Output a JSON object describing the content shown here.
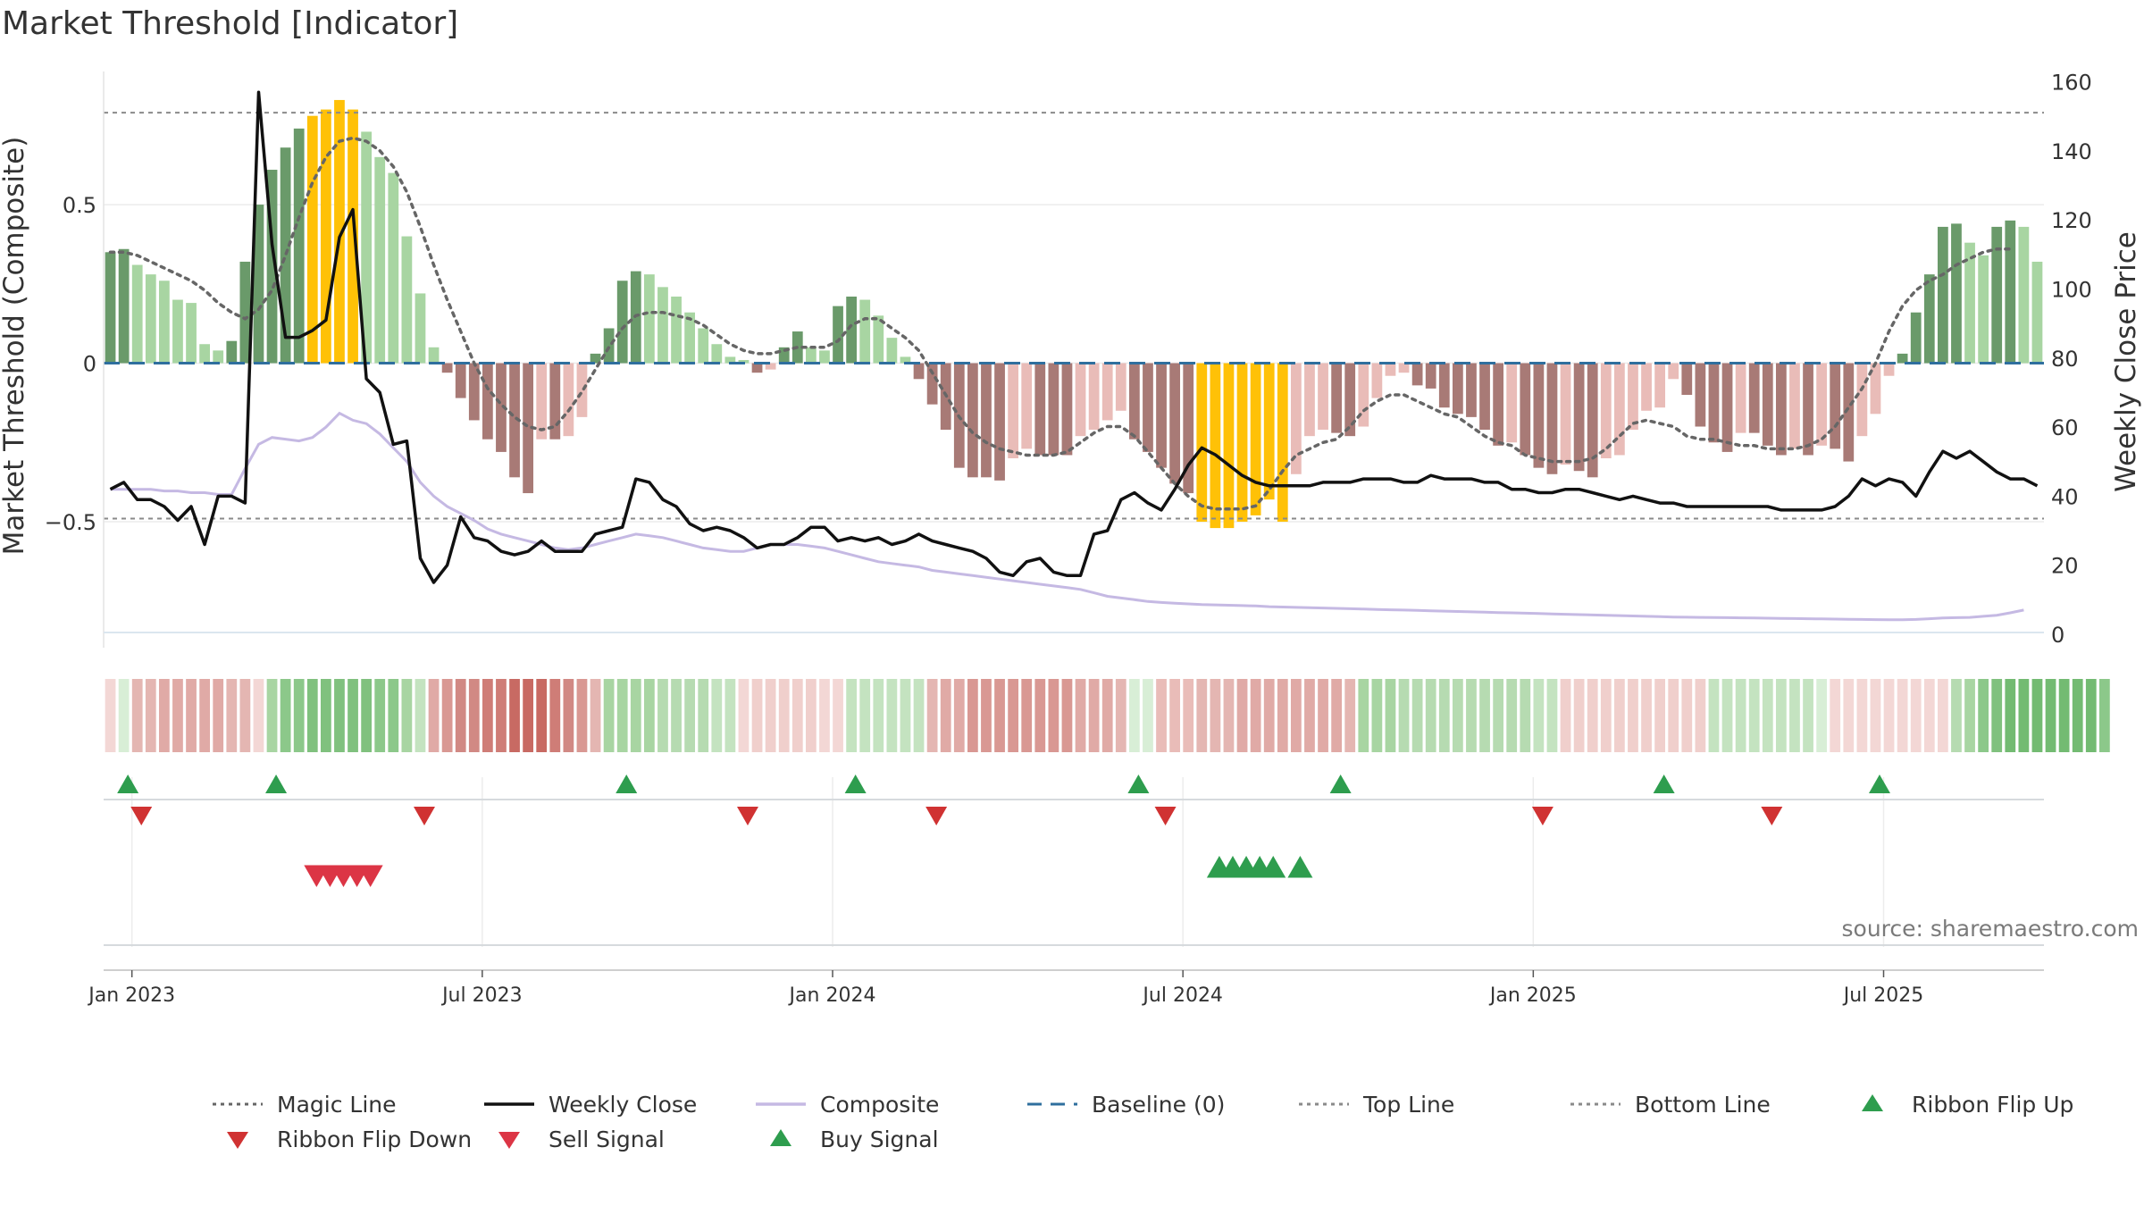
{
  "chart_data": {
    "type": "bar",
    "title": "Market Threshold [Indicator]",
    "ylabel_left": "Market Threshold (Composite)",
    "ylabel_right": "Weekly Close Price",
    "y_left_ticks": [
      {
        "v": 0.5,
        "label": "0.5"
      },
      {
        "v": 0,
        "label": "0"
      },
      {
        "v": -0.5,
        "label": "−0.5"
      }
    ],
    "y_left_range": [
      -0.855,
      0.92
    ],
    "y_right_ticks": [
      160,
      140,
      120,
      100,
      80,
      60,
      40,
      20,
      0
    ],
    "y_right_range": [
      0,
      163
    ],
    "x_ticks": [
      "Jan 2023",
      "Jul 2023",
      "Jan 2024",
      "Jul 2024",
      "Jan 2025",
      "Jul 2025"
    ],
    "x_tick_weeks": [
      2,
      28,
      54,
      80,
      106,
      132
    ],
    "top_line": 0.79,
    "bottom_line": -0.49,
    "baseline": 0,
    "week_count": 144,
    "bars": [
      0.35,
      0.36,
      0.31,
      0.28,
      0.26,
      0.2,
      0.19,
      0.06,
      0.04,
      0.07,
      0.32,
      0.5,
      0.61,
      0.68,
      0.74,
      0.78,
      0.8,
      0.83,
      0.8,
      0.73,
      0.65,
      0.6,
      0.4,
      0.22,
      0.05,
      -0.03,
      -0.11,
      -0.18,
      -0.24,
      -0.28,
      -0.36,
      -0.41,
      -0.24,
      -0.24,
      -0.23,
      -0.17,
      0.03,
      0.11,
      0.26,
      0.29,
      0.28,
      0.24,
      0.21,
      0.16,
      0.11,
      0.06,
      0.02,
      0.01,
      -0.03,
      -0.02,
      0.05,
      0.1,
      0.05,
      0.04,
      0.18,
      0.21,
      0.2,
      0.15,
      0.08,
      0.02,
      -0.05,
      -0.13,
      -0.21,
      -0.33,
      -0.36,
      -0.36,
      -0.37,
      -0.3,
      -0.27,
      -0.29,
      -0.29,
      -0.29,
      -0.23,
      -0.21,
      -0.18,
      -0.15,
      -0.24,
      -0.28,
      -0.33,
      -0.38,
      -0.41,
      -0.5,
      -0.52,
      -0.52,
      -0.5,
      -0.48,
      -0.43,
      -0.5,
      -0.35,
      -0.23,
      -0.21,
      -0.22,
      -0.23,
      -0.2,
      -0.11,
      -0.04,
      -0.03,
      -0.07,
      -0.08,
      -0.14,
      -0.16,
      -0.17,
      -0.21,
      -0.26,
      -0.25,
      -0.29,
      -0.33,
      -0.35,
      -0.32,
      -0.34,
      -0.36,
      -0.3,
      -0.29,
      -0.21,
      -0.15,
      -0.14,
      -0.05,
      -0.1,
      -0.2,
      -0.25,
      -0.28,
      -0.22,
      -0.22,
      -0.26,
      -0.29,
      -0.27,
      -0.29,
      -0.26,
      -0.27,
      -0.31,
      -0.23,
      -0.16,
      -0.04,
      0.03,
      0.16,
      0.28,
      0.43,
      0.44,
      0.38,
      0.34,
      0.43,
      0.45,
      0.43,
      0.32
    ],
    "bar_colors": {
      "strong_up": "#6a9a6a",
      "up": "#a8d5a2",
      "strong_down": "#a87a76",
      "down": "#e9bcb8",
      "extreme": "#ffc107"
    },
    "extreme_weeks": [
      15,
      16,
      17,
      18,
      81,
      82,
      83,
      84,
      85,
      86,
      87
    ],
    "series": [
      {
        "name": "Magic Line",
        "color": "#666666",
        "axis": "left",
        "values": [
          0.35,
          0.35,
          0.34,
          0.32,
          0.3,
          0.28,
          0.26,
          0.23,
          0.19,
          0.16,
          0.14,
          0.17,
          0.23,
          0.34,
          0.46,
          0.57,
          0.65,
          0.7,
          0.71,
          0.7,
          0.67,
          0.62,
          0.54,
          0.43,
          0.31,
          0.2,
          0.1,
          0.0,
          -0.08,
          -0.13,
          -0.17,
          -0.2,
          -0.21,
          -0.2,
          -0.15,
          -0.09,
          -0.02,
          0.05,
          0.11,
          0.15,
          0.16,
          0.16,
          0.15,
          0.14,
          0.12,
          0.09,
          0.06,
          0.04,
          0.03,
          0.03,
          0.04,
          0.05,
          0.05,
          0.05,
          0.07,
          0.12,
          0.14,
          0.14,
          0.11,
          0.08,
          0.04,
          -0.03,
          -0.1,
          -0.17,
          -0.22,
          -0.25,
          -0.27,
          -0.28,
          -0.29,
          -0.29,
          -0.29,
          -0.28,
          -0.25,
          -0.22,
          -0.2,
          -0.2,
          -0.23,
          -0.28,
          -0.33,
          -0.38,
          -0.42,
          -0.45,
          -0.46,
          -0.46,
          -0.46,
          -0.45,
          -0.4,
          -0.34,
          -0.29,
          -0.27,
          -0.25,
          -0.24,
          -0.2,
          -0.15,
          -0.12,
          -0.1,
          -0.1,
          -0.12,
          -0.14,
          -0.16,
          -0.17,
          -0.2,
          -0.23,
          -0.25,
          -0.26,
          -0.29,
          -0.3,
          -0.31,
          -0.31,
          -0.31,
          -0.3,
          -0.27,
          -0.23,
          -0.19,
          -0.18,
          -0.19,
          -0.2,
          -0.23,
          -0.24,
          -0.24,
          -0.25,
          -0.26,
          -0.26,
          -0.27,
          -0.27,
          -0.27,
          -0.26,
          -0.24,
          -0.2,
          -0.14,
          -0.08,
          0.0,
          0.1,
          0.18,
          0.23,
          0.26,
          0.28,
          0.31,
          0.33,
          0.35,
          0.36,
          0.36
        ]
      },
      {
        "name": "Composite",
        "color": "#c5b9e3",
        "axis": "right",
        "values": [
          42,
          42,
          42,
          42,
          41.5,
          41.5,
          41,
          41,
          40.5,
          40.5,
          48,
          55,
          57,
          56.5,
          56,
          57,
          60,
          64,
          62,
          61,
          58,
          54,
          50,
          44,
          40,
          37,
          35,
          33,
          30.5,
          29,
          28,
          27,
          26,
          25,
          24.5,
          25,
          26,
          27,
          28,
          29,
          28.5,
          28,
          27,
          26,
          25,
          24.5,
          24,
          24,
          25,
          26,
          26,
          26,
          25.5,
          25,
          24,
          23,
          22,
          21,
          20.5,
          20,
          19.5,
          18.5,
          18,
          17.5,
          17,
          16.5,
          16,
          15.5,
          15,
          14.5,
          14,
          13.5,
          13,
          12,
          11,
          10.5,
          10,
          9.5,
          9.2,
          9,
          8.8,
          8.6,
          8.5,
          8.4,
          8.3,
          8.2,
          8,
          7.9,
          7.8,
          7.7,
          7.6,
          7.5,
          7.4,
          7.3,
          7.2,
          7.1,
          7,
          6.9,
          6.8,
          6.7,
          6.6,
          6.5,
          6.4,
          6.3,
          6.2,
          6.1,
          6,
          5.9,
          5.8,
          5.7,
          5.6,
          5.5,
          5.4,
          5.3,
          5.2,
          5.1,
          5,
          4.95,
          4.9,
          4.85,
          4.8,
          4.75,
          4.7,
          4.65,
          4.6,
          4.55,
          4.5,
          4.45,
          4.4,
          4.35,
          4.3,
          4.25,
          4.2,
          4.2,
          4.3,
          4.5,
          4.7,
          4.8,
          4.9,
          5.2,
          5.5,
          6.2,
          7
        ]
      },
      {
        "name": "Weekly Close",
        "color": "#111111",
        "axis": "right",
        "values": [
          42,
          44,
          39,
          39,
          37,
          33,
          37,
          26,
          40,
          40,
          38,
          157,
          113,
          86,
          86,
          88,
          91,
          115,
          123,
          74,
          70,
          55,
          56,
          22,
          15,
          20,
          34,
          28,
          27,
          24,
          23,
          24,
          27,
          24,
          24,
          24,
          29,
          30,
          31,
          45,
          44,
          39,
          37,
          32,
          30,
          31,
          30,
          28,
          25,
          26,
          26,
          28,
          31,
          31,
          27,
          28,
          27,
          28,
          26,
          27,
          29,
          27,
          26,
          25,
          24,
          22,
          18,
          17,
          21,
          22,
          18,
          17,
          17,
          29,
          30,
          39,
          41,
          38,
          36,
          42,
          49,
          54,
          52,
          49,
          46,
          44,
          43,
          43,
          43,
          43,
          44,
          44,
          44,
          45,
          45,
          45,
          44,
          44,
          46,
          45,
          45,
          45,
          44,
          44,
          42,
          42,
          41,
          41,
          42,
          42,
          41,
          40,
          39,
          40,
          39,
          38,
          38,
          37,
          37,
          37,
          37,
          37,
          37,
          37,
          36,
          36,
          36,
          36,
          37,
          40,
          45,
          43,
          45,
          44,
          40,
          47,
          53,
          51,
          53,
          50,
          47,
          45,
          45,
          43
        ]
      },
      {
        "name": "Baseline (0)",
        "color": "#2f6f9e",
        "axis": "left"
      },
      {
        "name": "Top Line",
        "color": "#8a8a8a",
        "axis": "left"
      },
      {
        "name": "Bottom Line",
        "color": "#8a8a8a",
        "axis": "left"
      }
    ],
    "ribbon_colors": [
      "#f3d7d5",
      "#d8eed6",
      "#e4b6b2",
      "#e4b6b2",
      "#e0aaa6",
      "#e0aaa6",
      "#e0aaa6",
      "#e0aaa6",
      "#e0aaa6",
      "#e4b6b2",
      "#e4b6b2",
      "#f3d7d5",
      "#a8d5a2",
      "#8cc88a",
      "#8cc88a",
      "#80c17e",
      "#80c17e",
      "#80c17e",
      "#80c17e",
      "#80c17e",
      "#8cc88a",
      "#8cc88a",
      "#a8d5a2",
      "#c4e3c0",
      "#e0aaa6",
      "#d99893",
      "#d18984",
      "#d18984",
      "#cf7d77",
      "#cf7d77",
      "#c86a63",
      "#c86a63",
      "#c86a63",
      "#cf7d77",
      "#d18984",
      "#d99893",
      "#e4b6b2",
      "#a8d5a2",
      "#a8d5a2",
      "#a8d5a2",
      "#a8d5a2",
      "#b6dbb1",
      "#b6dbb1",
      "#b6dbb1",
      "#b6dbb1",
      "#c4e3c0",
      "#c4e3c0",
      "#f3d7d5",
      "#f0cfcc",
      "#f0cfcc",
      "#f0cfcc",
      "#f0cfcc",
      "#f0cfcc",
      "#f3d7d5",
      "#f3d7d5",
      "#c4e3c0",
      "#c4e3c0",
      "#c4e3c0",
      "#c4e3c0",
      "#c4e3c0",
      "#c4e3c0",
      "#e4b6b2",
      "#e0aaa6",
      "#e0aaa6",
      "#d99893",
      "#d99893",
      "#d99893",
      "#d99893",
      "#d99893",
      "#d99893",
      "#d99893",
      "#d99893",
      "#e0aaa6",
      "#e0aaa6",
      "#e0aaa6",
      "#e4b6b2",
      "#d8eed6",
      "#d8eed6",
      "#e9bcb8",
      "#e9bcb8",
      "#e9bcb8",
      "#e4b6b2",
      "#e4b6b2",
      "#e4b6b2",
      "#e0aaa6",
      "#e0aaa6",
      "#e0aaa6",
      "#e0aaa6",
      "#e0aaa6",
      "#e0aaa6",
      "#e0aaa6",
      "#e0aaa6",
      "#e4b6b2",
      "#a8d5a2",
      "#a8d5a2",
      "#a8d5a2",
      "#b6dbb1",
      "#b6dbb1",
      "#b6dbb1",
      "#b6dbb1",
      "#b6dbb1",
      "#b6dbb1",
      "#b6dbb1",
      "#b6dbb1",
      "#b6dbb1",
      "#b6dbb1",
      "#c4e3c0",
      "#c4e3c0",
      "#f0cfcc",
      "#f0cfcc",
      "#f0cfcc",
      "#f0cfcc",
      "#f0cfcc",
      "#f0cfcc",
      "#f0cfcc",
      "#f0cfcc",
      "#f0cfcc",
      "#f0cfcc",
      "#f0cfcc",
      "#c4e3c0",
      "#c4e3c0",
      "#c4e3c0",
      "#c4e3c0",
      "#c4e3c0",
      "#c4e3c0",
      "#c4e3c0",
      "#c4e3c0",
      "#d8eed6",
      "#f3d7d5",
      "#f3d7d5",
      "#f3d7d5",
      "#f3d7d5",
      "#f3d7d5",
      "#f3d7d5",
      "#f3d7d5",
      "#f3d7d5",
      "#f3d7d5",
      "#b6dbb1",
      "#a8d5a2",
      "#8cc88a",
      "#80c17e",
      "#73bb72",
      "#73bb72",
      "#73bb72",
      "#73bb72",
      "#73bb72",
      "#73bb72",
      "#73bb72",
      "#8cc88a"
    ],
    "ribbon_flip_up_weeks": [
      1,
      12,
      38,
      55,
      76,
      91,
      115,
      131
    ],
    "ribbon_flip_down_weeks": [
      2,
      23,
      47,
      61,
      78,
      106,
      123
    ],
    "sell_signal_weeks": [
      15,
      16,
      17,
      18,
      19
    ],
    "buy_signal_weeks": [
      82,
      83,
      84,
      85,
      86,
      88
    ],
    "legend": [
      {
        "label": "Magic Line",
        "symbol": "dotted",
        "color": "#666666"
      },
      {
        "label": "Weekly Close",
        "symbol": "solid",
        "color": "#111111"
      },
      {
        "label": "Composite",
        "symbol": "solid",
        "color": "#c5b9e3"
      },
      {
        "label": "Baseline (0)",
        "symbol": "dashed",
        "color": "#2f6f9e"
      },
      {
        "label": "Top Line",
        "symbol": "dotted",
        "color": "#8a8a8a"
      },
      {
        "label": "Bottom Line",
        "symbol": "dotted",
        "color": "#8a8a8a"
      },
      {
        "label": "Ribbon Flip Up",
        "symbol": "triangle-up",
        "color": "#2e9d4e"
      },
      {
        "label": "Ribbon Flip Down",
        "symbol": "triangle-down",
        "color": "#d03232"
      },
      {
        "label": "Sell Signal",
        "symbol": "triangle-down",
        "color": "#dc3545"
      },
      {
        "label": "Buy Signal",
        "symbol": "triangle-up",
        "color": "#2e9d4e"
      }
    ],
    "annotation": "source: sharemaestro.com"
  }
}
